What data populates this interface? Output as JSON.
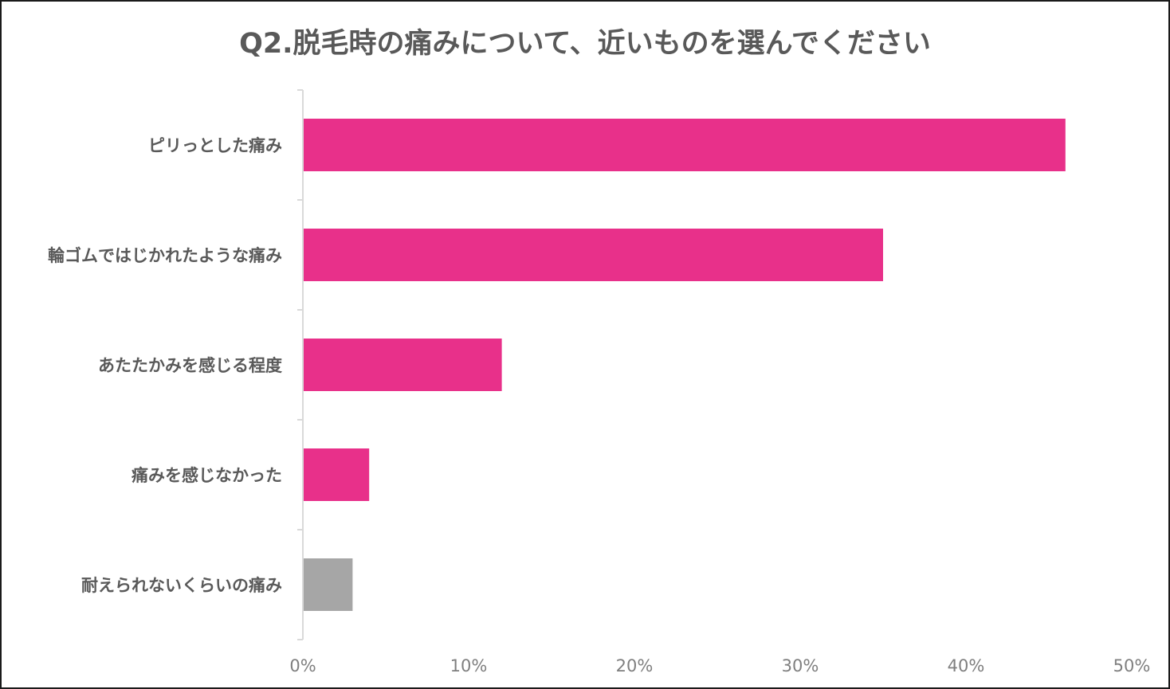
{
  "chart_data": {
    "type": "bar",
    "orientation": "horizontal",
    "title": "Q2.脱毛時の痛みについて、近いものを選んでください",
    "categories": [
      "ピリっとした痛み",
      "輪ゴムではじかれたような痛み",
      "あたたかみを感じる程度",
      "痛みを感じなかった",
      "耐えられないくらいの痛み"
    ],
    "values": [
      0.46,
      0.35,
      0.12,
      0.04,
      0.03
    ],
    "bar_colors": [
      "#e8308a",
      "#e8308a",
      "#e8308a",
      "#e8308a",
      "#a6a6a6"
    ],
    "xlim": [
      0,
      0.5
    ],
    "xticks": [
      0,
      0.1,
      0.2,
      0.3,
      0.4,
      0.5
    ],
    "xtick_labels": [
      "0%",
      "10%",
      "20%",
      "30%",
      "40%",
      "50%"
    ],
    "xlabel": "",
    "ylabel": "",
    "grid": false,
    "legend": "none"
  }
}
